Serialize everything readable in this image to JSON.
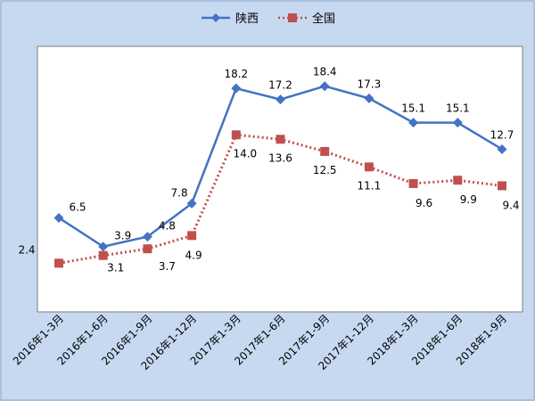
{
  "chart_data": {
    "type": "line",
    "categories": [
      "2016年1-3月",
      "2016年1-6月",
      "2016年1-9月",
      "2016年1-12月",
      "2017年1-3月",
      "2017年1-6月",
      "2017年1-9月",
      "2017年1-12月",
      "2018年1-3月",
      "2018年1-6月",
      "2018年1-9月"
    ],
    "series": [
      {
        "name": "陕西",
        "values": [
          6.5,
          3.9,
          4.8,
          7.8,
          18.2,
          17.2,
          18.4,
          17.3,
          15.1,
          15.1,
          12.7
        ],
        "color": "#4472C4",
        "marker": "diamond",
        "line_style": "solid"
      },
      {
        "name": "全国",
        "values": [
          2.4,
          3.1,
          3.7,
          4.9,
          14.0,
          13.6,
          12.5,
          11.1,
          9.6,
          9.9,
          9.4
        ],
        "color": "#C0504D",
        "marker": "square",
        "line_style": "dotted"
      }
    ],
    "ylim": [
      -2,
      22
    ],
    "grid": false,
    "legend_position": "top",
    "background_outer": "#C6D9F1",
    "background_plot": "#FFFFFF"
  }
}
